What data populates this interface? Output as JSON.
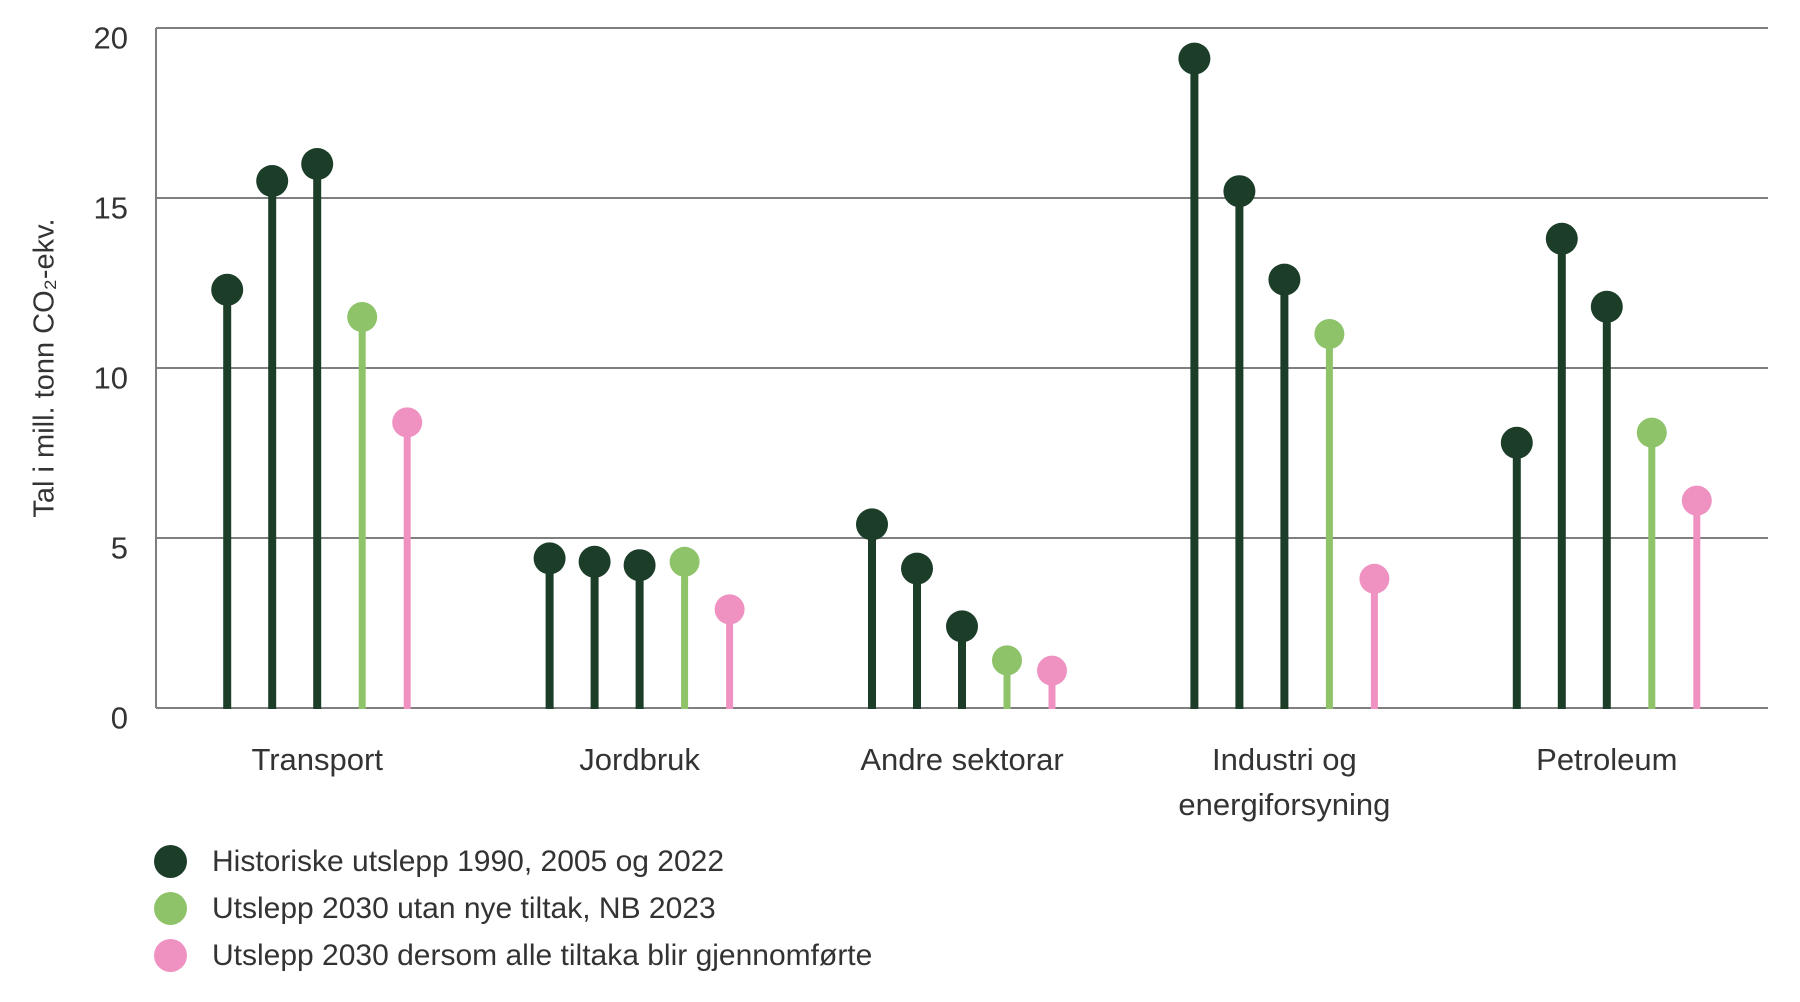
{
  "chart_data": {
    "type": "lollipop",
    "title": "",
    "ylabel": "Tal i mill. tonn CO₂-ekv.",
    "xlabel": "",
    "ylim": [
      0,
      20
    ],
    "yticks": [
      0,
      5,
      10,
      15,
      20
    ],
    "grid": "horizontal",
    "legend_position": "bottom-left",
    "axis_color": "#7f7f7f",
    "text_color": "#333333",
    "categories": [
      "Transport",
      "Jordbruk",
      "Andre sektorar",
      "Industri og\nenergiforsyning",
      "Petroleum"
    ],
    "series": [
      {
        "name": "Historiske utslepp 1990, 2005 og 2022",
        "color": "#1c3e29",
        "years": [
          1990,
          2005,
          2022
        ],
        "values": [
          [
            12.3,
            15.5,
            16.0
          ],
          [
            4.4,
            4.3,
            4.2
          ],
          [
            5.4,
            4.1,
            2.4
          ],
          [
            19.1,
            15.2,
            12.6
          ],
          [
            7.8,
            13.8,
            11.8
          ]
        ]
      },
      {
        "name": "Utslepp 2030 utan nye tiltak, NB 2023",
        "color": "#8ec36a",
        "values": [
          11.5,
          4.3,
          1.4,
          11.0,
          8.1
        ]
      },
      {
        "name": "Utslepp 2030 dersom alle tiltaka blir gjennomførte",
        "color": "#ef92c2",
        "values": [
          8.4,
          2.9,
          1.1,
          3.8,
          6.1
        ]
      }
    ]
  }
}
